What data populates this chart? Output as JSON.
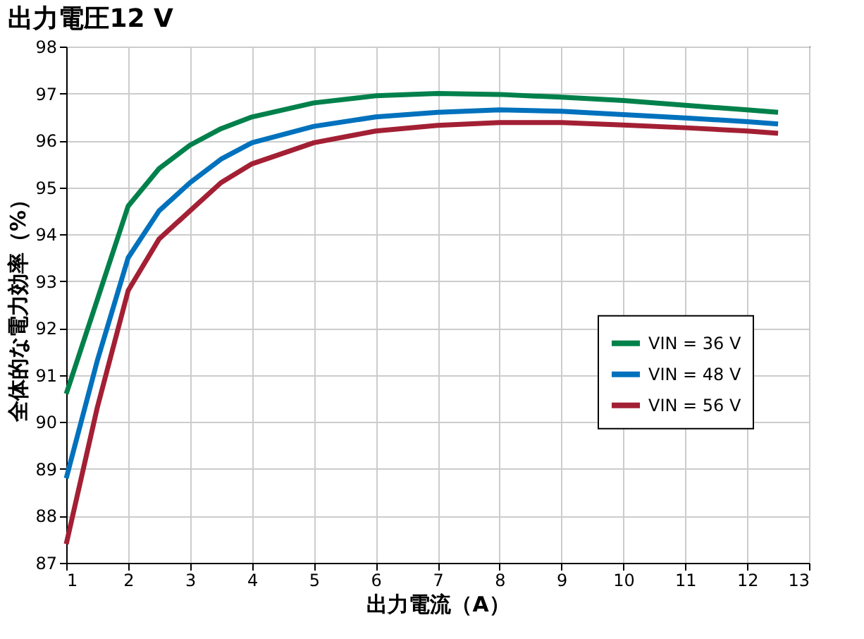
{
  "chart_data": {
    "type": "line",
    "title": "出力電圧12 V",
    "xlabel": "出力電流（A）",
    "ylabel": "全体的な電力効率（%）",
    "x": [
      1,
      1.5,
      2,
      2.5,
      3,
      3.5,
      4,
      5,
      6,
      7,
      8,
      9,
      10,
      11,
      12,
      12.5
    ],
    "series": [
      {
        "name": "VIN = 36 V",
        "color": "#00804a",
        "values": [
          90.6,
          92.6,
          94.6,
          95.4,
          95.9,
          96.25,
          96.5,
          96.8,
          96.95,
          97.0,
          96.98,
          96.92,
          96.85,
          96.75,
          96.65,
          96.6
        ]
      },
      {
        "name": "VIN = 48 V",
        "color": "#0071bc",
        "values": [
          88.8,
          91.3,
          93.5,
          94.5,
          95.1,
          95.6,
          95.95,
          96.3,
          96.5,
          96.6,
          96.65,
          96.62,
          96.55,
          96.48,
          96.4,
          96.35
        ]
      },
      {
        "name": "VIN = 56 V",
        "color": "#a31f34",
        "values": [
          87.4,
          90.3,
          92.8,
          93.9,
          94.5,
          95.1,
          95.5,
          95.95,
          96.2,
          96.32,
          96.38,
          96.38,
          96.33,
          96.27,
          96.2,
          96.15
        ]
      }
    ],
    "xlim": [
      1,
      13
    ],
    "xticks": [
      1,
      2,
      3,
      4,
      5,
      6,
      7,
      8,
      9,
      10,
      11,
      12,
      13
    ],
    "ylim": [
      87,
      98
    ],
    "yticks": [
      87,
      88,
      89,
      90,
      91,
      92,
      93,
      94,
      95,
      96,
      97,
      98
    ],
    "grid": true,
    "legend": "right",
    "marker": "none",
    "line_style": "solid"
  }
}
